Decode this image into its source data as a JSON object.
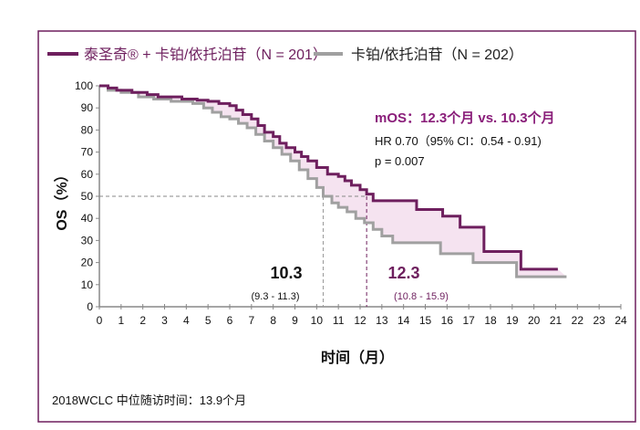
{
  "chart_data": {
    "type": "line",
    "xlabel": "时间（月）",
    "ylabel": "OS（%）",
    "xlim": [
      0,
      24
    ],
    "ylim": [
      0,
      100
    ],
    "xticks": [
      "0",
      "1",
      "2",
      "3",
      "4",
      "5",
      "6",
      "7",
      "8",
      "9",
      "10",
      "11",
      "12",
      "13",
      "14",
      "15",
      "16",
      "17",
      "18",
      "19",
      "20",
      "21",
      "22",
      "23",
      "24"
    ],
    "yticks": [
      "0",
      "10",
      "20",
      "30",
      "40",
      "50",
      "60",
      "70",
      "80",
      "90",
      "100"
    ],
    "grid": false,
    "legend_position": "top",
    "series": [
      {
        "name": "泰圣奇® + 卡铂/依托泊苷（N = 201）",
        "color": "#6e1f5e",
        "x": [
          0,
          0.4,
          0.8,
          1.5,
          2.2,
          2.7,
          3.8,
          4.5,
          5,
          5.5,
          6,
          6.3,
          6.6,
          7,
          7.3,
          7.6,
          8,
          8.3,
          8.6,
          9,
          9.3,
          9.6,
          10,
          10.5,
          11,
          11.3,
          11.6,
          12,
          12.3,
          12.6,
          14.2,
          14.6,
          15.8,
          16.6,
          17.7,
          19.4,
          21.1
        ],
        "y": [
          100,
          99,
          98,
          97,
          96,
          95,
          94,
          93.5,
          93,
          92,
          91,
          89,
          87,
          85,
          82,
          79,
          77,
          74,
          72,
          70,
          68,
          66,
          63,
          60,
          59,
          57,
          55,
          53,
          51,
          48,
          48,
          44,
          41,
          36,
          25,
          17,
          17
        ]
      },
      {
        "name": "卡铂/依托泊苷（N = 202）",
        "color": "#a0a0a0",
        "x": [
          0,
          0.4,
          1,
          1.8,
          2.5,
          3.3,
          4.3,
          4.8,
          5.2,
          5.6,
          6,
          6.4,
          6.8,
          7.2,
          7.6,
          8,
          8.4,
          8.8,
          9.2,
          9.6,
          10,
          10.3,
          10.7,
          11,
          11.4,
          11.8,
          12.2,
          12.6,
          13,
          13.5,
          15.7,
          17.2,
          19.2,
          21.5
        ],
        "y": [
          100,
          98,
          97,
          95,
          94,
          93,
          92,
          90,
          88,
          86,
          85,
          83,
          81,
          78,
          75,
          72,
          69,
          66,
          62,
          58,
          54,
          50,
          47,
          45,
          43,
          40,
          38,
          35,
          32,
          29,
          24,
          20,
          13.6,
          13.6
        ]
      }
    ],
    "annotations": {
      "mos": "mOS：12.3个月 vs. 10.3个月",
      "hr": "HR 0.70（95% CI：0.54 - 0.91)",
      "p": "p = 0.007",
      "median_control": "10.3",
      "median_control_ci": "(9.3 - 11.3)",
      "median_treatment": "12.3",
      "median_treatment_ci": "(10.8 - 15.9)",
      "median_y": 50
    },
    "footnote": "2018WCLC 中位随访时间：13.9个月"
  },
  "colors": {
    "frame": "#6e1f5e",
    "fill": "#f5e3f0",
    "axis": "#888888"
  }
}
